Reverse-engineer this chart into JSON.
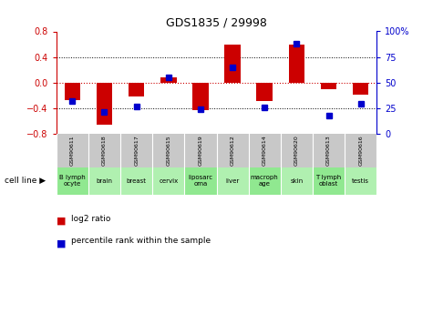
{
  "title": "GDS1835 / 29998",
  "samples": [
    "GSM90611",
    "GSM90618",
    "GSM90617",
    "GSM90615",
    "GSM90619",
    "GSM90612",
    "GSM90614",
    "GSM90620",
    "GSM90613",
    "GSM90616"
  ],
  "cell_lines": [
    "B lymph\nocyte",
    "brain",
    "breast",
    "cervix",
    "liposarc\noma",
    "liver",
    "macroph\nage",
    "skin",
    "T lymph\noblast",
    "testis"
  ],
  "log2_ratio": [
    -0.27,
    -0.65,
    -0.22,
    0.08,
    -0.43,
    0.6,
    -0.28,
    0.6,
    -0.1,
    -0.18
  ],
  "percentile_rank": [
    32,
    22,
    27,
    55,
    24,
    65,
    26,
    88,
    18,
    30
  ],
  "ylim_left": [
    -0.8,
    0.8
  ],
  "ylim_right": [
    0,
    100
  ],
  "bar_color": "#cc0000",
  "dot_color": "#0000cc",
  "bg_plot": "#ffffff",
  "bg_sample_row": "#c8c8c8",
  "bg_cell_row": "#b0f0b0",
  "bg_cell_alt": "#90e890",
  "legend_bar_label": "log2 ratio",
  "legend_dot_label": "percentile rank within the sample",
  "cell_line_label": "cell line ▶",
  "bar_width": 0.5
}
